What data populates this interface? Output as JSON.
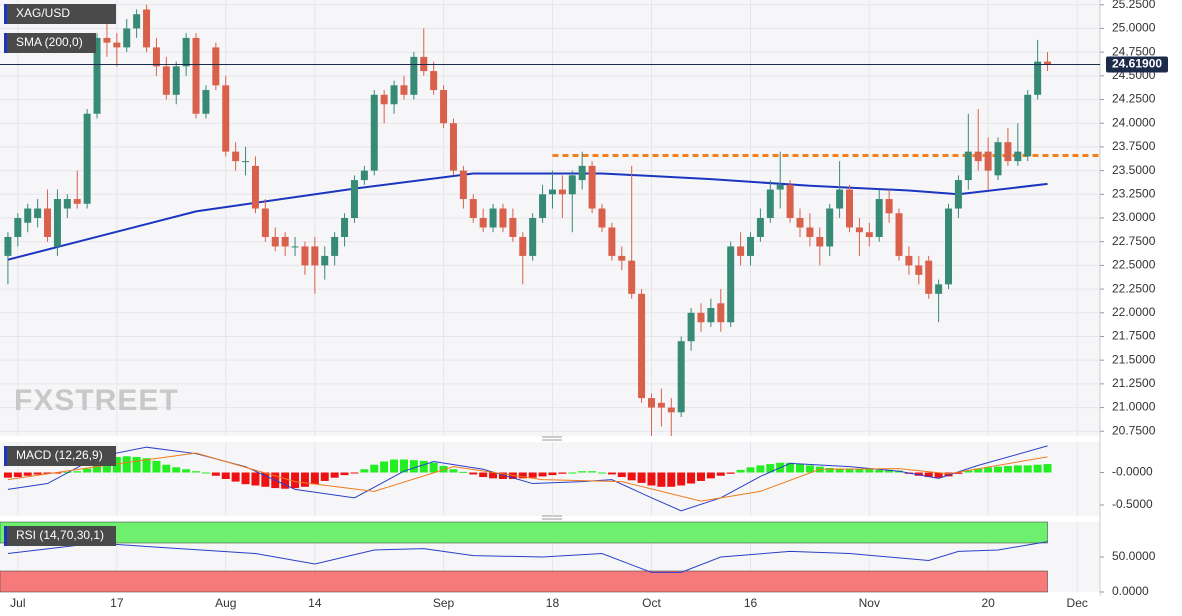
{
  "chart_data": [
    {
      "type": "candlestick",
      "title": "XAG/USD",
      "up_color": "#368a76",
      "down_color": "#d9604b",
      "grid": true,
      "xlim": [
        -0.8,
        110.3
      ],
      "xticks": [
        {
          "value": 1,
          "label": "Jul"
        },
        {
          "value": 11,
          "label": "17"
        },
        {
          "value": 22,
          "label": "Aug"
        },
        {
          "value": 31,
          "label": "14"
        },
        {
          "value": 44,
          "label": "Sep"
        },
        {
          "value": 55,
          "label": "18"
        },
        {
          "value": 65,
          "label": "Oct"
        },
        {
          "value": 75,
          "label": "16"
        },
        {
          "value": 87,
          "label": "Nov"
        },
        {
          "value": 99,
          "label": "20"
        },
        {
          "value": 108,
          "label": "Dec"
        }
      ],
      "ylim": [
        20.7,
        25.3
      ],
      "yticks": [
        {
          "value": 25.25,
          "label": "25.2500"
        },
        {
          "value": 25.0,
          "label": "25.0000"
        },
        {
          "value": 24.75,
          "label": "24.7500"
        },
        {
          "value": 24.5,
          "label": "24.5000"
        },
        {
          "value": 24.25,
          "label": "24.2500"
        },
        {
          "value": 24.0,
          "label": "24.0000"
        },
        {
          "value": 23.75,
          "label": "23.7500"
        },
        {
          "value": 23.5,
          "label": "23.5000"
        },
        {
          "value": 23.25,
          "label": "23.2500"
        },
        {
          "value": 23.0,
          "label": "23.0000"
        },
        {
          "value": 22.75,
          "label": "22.7500"
        },
        {
          "value": 22.5,
          "label": "22.5000"
        },
        {
          "value": 22.25,
          "label": "22.2500"
        },
        {
          "value": 22.0,
          "label": "22.0000"
        },
        {
          "value": 21.75,
          "label": "21.7500"
        },
        {
          "value": 21.5,
          "label": "21.5000"
        },
        {
          "value": 21.25,
          "label": "21.2500"
        },
        {
          "value": 21.0,
          "label": "21.0000"
        },
        {
          "value": 20.75,
          "label": "20.7500"
        }
      ],
      "last_price": {
        "value": 24.619,
        "label": "24.61900"
      },
      "watermark": "FXSTREET",
      "candles": [
        [
          22.6,
          22.85,
          22.3,
          22.8
        ],
        [
          22.8,
          23.05,
          22.7,
          23.0
        ],
        [
          22.95,
          23.15,
          22.85,
          23.1
        ],
        [
          23.0,
          23.2,
          22.9,
          23.1
        ],
        [
          23.1,
          23.3,
          22.75,
          22.8
        ],
        [
          22.7,
          23.3,
          22.6,
          23.2
        ],
        [
          23.1,
          23.25,
          23.0,
          23.2
        ],
        [
          23.2,
          23.5,
          23.1,
          23.15
        ],
        [
          23.15,
          24.15,
          23.1,
          24.1
        ],
        [
          24.1,
          24.95,
          24.05,
          24.9
        ],
        [
          24.9,
          25.05,
          24.7,
          24.85
        ],
        [
          24.85,
          24.95,
          24.6,
          24.8
        ],
        [
          24.8,
          25.1,
          24.75,
          25.0
        ],
        [
          25.0,
          25.2,
          24.9,
          25.15
        ],
        [
          25.2,
          25.25,
          24.75,
          24.8
        ],
        [
          24.8,
          24.9,
          24.5,
          24.6
        ],
        [
          24.6,
          24.7,
          24.25,
          24.3
        ],
        [
          24.3,
          24.65,
          24.2,
          24.6
        ],
        [
          24.6,
          24.95,
          24.5,
          24.9
        ],
        [
          24.9,
          24.95,
          24.05,
          24.1
        ],
        [
          24.1,
          24.4,
          24.05,
          24.35
        ],
        [
          24.8,
          24.85,
          24.35,
          24.4
        ],
        [
          24.4,
          24.5,
          23.65,
          23.7
        ],
        [
          23.7,
          23.8,
          23.5,
          23.6
        ],
        [
          23.6,
          23.75,
          23.45,
          23.6
        ],
        [
          23.55,
          23.65,
          23.05,
          23.1
        ],
        [
          23.1,
          23.2,
          22.75,
          22.8
        ],
        [
          22.8,
          22.9,
          22.65,
          22.7
        ],
        [
          22.8,
          22.85,
          22.6,
          22.7
        ],
        [
          22.7,
          22.8,
          22.6,
          22.7
        ],
        [
          22.7,
          22.75,
          22.4,
          22.5
        ],
        [
          22.7,
          22.8,
          22.2,
          22.5
        ],
        [
          22.5,
          22.7,
          22.35,
          22.6
        ],
        [
          22.6,
          22.85,
          22.5,
          22.8
        ],
        [
          22.8,
          23.05,
          22.7,
          23.0
        ],
        [
          23.0,
          23.45,
          22.95,
          23.4
        ],
        [
          23.4,
          23.55,
          23.35,
          23.5
        ],
        [
          23.5,
          24.35,
          23.45,
          24.3
        ],
        [
          24.3,
          24.35,
          24.0,
          24.2
        ],
        [
          24.2,
          24.45,
          24.1,
          24.4
        ],
        [
          24.4,
          24.5,
          24.25,
          24.3
        ],
        [
          24.3,
          24.75,
          24.25,
          24.7
        ],
        [
          24.7,
          25.0,
          24.5,
          24.55
        ],
        [
          24.55,
          24.65,
          24.3,
          24.35
        ],
        [
          24.35,
          24.4,
          23.95,
          24.0
        ],
        [
          24.0,
          24.05,
          23.45,
          23.5
        ],
        [
          23.5,
          23.55,
          23.1,
          23.2
        ],
        [
          23.2,
          23.25,
          22.95,
          23.0
        ],
        [
          23.0,
          23.1,
          22.85,
          22.9
        ],
        [
          22.9,
          23.15,
          22.85,
          23.1
        ],
        [
          23.1,
          23.15,
          22.85,
          22.9
        ],
        [
          23.0,
          23.1,
          22.75,
          22.8
        ],
        [
          22.8,
          22.85,
          22.3,
          22.6
        ],
        [
          22.6,
          23.05,
          22.55,
          23.0
        ],
        [
          23.0,
          23.35,
          22.95,
          23.25
        ],
        [
          23.25,
          23.5,
          23.1,
          23.3
        ],
        [
          23.3,
          23.45,
          23.0,
          23.25
        ],
        [
          23.25,
          23.5,
          22.85,
          23.45
        ],
        [
          23.4,
          23.7,
          23.3,
          23.55
        ],
        [
          23.55,
          23.6,
          23.05,
          23.1
        ],
        [
          23.1,
          23.15,
          22.85,
          22.9
        ],
        [
          22.9,
          22.95,
          22.55,
          22.6
        ],
        [
          22.6,
          22.7,
          22.45,
          22.55
        ],
        [
          22.55,
          23.55,
          22.15,
          22.2
        ],
        [
          22.2,
          22.25,
          21.05,
          21.1
        ],
        [
          21.1,
          21.15,
          20.7,
          21.0
        ],
        [
          21.05,
          21.2,
          20.8,
          21.0
        ],
        [
          21.0,
          21.1,
          20.7,
          20.95
        ],
        [
          20.95,
          21.75,
          20.9,
          21.7
        ],
        [
          21.7,
          22.05,
          21.6,
          22.0
        ],
        [
          22.0,
          22.1,
          21.8,
          21.9
        ],
        [
          21.9,
          22.15,
          21.85,
          22.05
        ],
        [
          22.1,
          22.25,
          21.8,
          21.9
        ],
        [
          21.9,
          22.75,
          21.85,
          22.7
        ],
        [
          22.7,
          22.85,
          22.5,
          22.6
        ],
        [
          22.6,
          22.85,
          22.5,
          22.8
        ],
        [
          22.8,
          23.1,
          22.75,
          23.0
        ],
        [
          23.0,
          23.4,
          22.95,
          23.3
        ],
        [
          23.3,
          23.7,
          23.1,
          23.35
        ],
        [
          23.35,
          23.4,
          22.95,
          23.0
        ],
        [
          23.0,
          23.1,
          22.8,
          22.9
        ],
        [
          22.9,
          23.05,
          22.7,
          22.8
        ],
        [
          22.8,
          22.9,
          22.5,
          22.7
        ],
        [
          22.7,
          23.15,
          22.6,
          23.1
        ],
        [
          23.1,
          23.6,
          23.0,
          23.3
        ],
        [
          23.3,
          23.35,
          22.85,
          22.9
        ],
        [
          22.9,
          23.0,
          22.6,
          22.85
        ],
        [
          22.85,
          22.95,
          22.7,
          22.8
        ],
        [
          22.8,
          23.3,
          22.75,
          23.2
        ],
        [
          23.2,
          23.3,
          22.95,
          23.05
        ],
        [
          23.05,
          23.1,
          22.55,
          22.6
        ],
        [
          22.6,
          22.7,
          22.4,
          22.5
        ],
        [
          22.5,
          22.6,
          22.3,
          22.4
        ],
        [
          22.55,
          22.6,
          22.15,
          22.2
        ],
        [
          22.2,
          22.35,
          21.9,
          22.3
        ],
        [
          22.3,
          23.15,
          22.25,
          23.1
        ],
        [
          23.1,
          23.45,
          23.0,
          23.4
        ],
        [
          23.4,
          24.1,
          23.3,
          23.7
        ],
        [
          23.7,
          24.15,
          23.5,
          23.6
        ],
        [
          23.7,
          23.85,
          23.3,
          23.5
        ],
        [
          23.45,
          23.85,
          23.4,
          23.8
        ],
        [
          23.8,
          23.95,
          23.55,
          23.6
        ],
        [
          23.6,
          24.0,
          23.55,
          23.7
        ],
        [
          23.65,
          24.35,
          23.6,
          24.3
        ],
        [
          24.3,
          24.88,
          24.25,
          24.65
        ],
        [
          24.65,
          24.75,
          24.55,
          24.62
        ]
      ],
      "series": [
        {
          "name": "SMA (200,0)",
          "color": "#1c35c0",
          "x": [
            0,
            19,
            35,
            47,
            60,
            71,
            81,
            91,
            96,
            105
          ],
          "values": [
            22.56,
            23.07,
            23.31,
            23.47,
            23.47,
            23.41,
            23.34,
            23.29,
            23.25,
            23.36
          ]
        }
      ],
      "levels": [
        {
          "value": 23.66,
          "x": 55,
          "color": "#f08020"
        }
      ]
    },
    {
      "type": "macd",
      "title": "MACD (12,26,9)",
      "ylim": [
        -0.67,
        0.47
      ],
      "yticks": [
        {
          "value": 0,
          "label": "-0.0000"
        },
        {
          "value": -0.5,
          "label": "-0.5000"
        }
      ],
      "histogram": {
        "up_color": "#22ee22",
        "down_color": "#ee1111",
        "values": [
          -0.08,
          -0.07,
          -0.05,
          -0.03,
          -0.02,
          -0.01,
          0.01,
          0.02,
          0.06,
          0.14,
          0.2,
          0.24,
          0.25,
          0.24,
          0.22,
          0.18,
          0.12,
          0.08,
          0.05,
          0.02,
          0.0,
          -0.05,
          -0.1,
          -0.14,
          -0.18,
          -0.2,
          -0.22,
          -0.24,
          -0.25,
          -0.24,
          -0.22,
          -0.18,
          -0.13,
          -0.08,
          -0.04,
          -0.01,
          0.05,
          0.12,
          0.17,
          0.2,
          0.2,
          0.19,
          0.18,
          0.15,
          0.1,
          0.05,
          0.01,
          -0.03,
          -0.07,
          -0.09,
          -0.1,
          -0.1,
          -0.09,
          -0.08,
          -0.06,
          -0.04,
          -0.02,
          0.0,
          0.02,
          0.02,
          0.0,
          -0.03,
          -0.07,
          -0.12,
          -0.16,
          -0.2,
          -0.22,
          -0.22,
          -0.2,
          -0.17,
          -0.13,
          -0.09,
          -0.05,
          -0.02,
          0.04,
          0.08,
          0.11,
          0.13,
          0.15,
          0.15,
          0.13,
          0.11,
          0.09,
          0.07,
          0.06,
          0.06,
          0.05,
          0.05,
          0.04,
          0.04,
          0.03,
          -0.02,
          -0.05,
          -0.07,
          -0.08,
          -0.06,
          -0.02,
          0.03,
          0.06,
          0.08,
          0.09,
          0.1,
          0.11,
          0.11,
          0.12,
          0.13
        ]
      },
      "series": [
        {
          "color": "#2a3fc8",
          "x": [
            0,
            4,
            9,
            14,
            19,
            24,
            29,
            35,
            40,
            43,
            48,
            53,
            58,
            61,
            65,
            68,
            72,
            76,
            79,
            85,
            90,
            94,
            98,
            105
          ],
          "values": [
            -0.26,
            -0.17,
            0.24,
            0.39,
            0.29,
            0.09,
            -0.26,
            -0.39,
            0.02,
            0.17,
            0.05,
            -0.17,
            -0.14,
            -0.11,
            -0.39,
            -0.59,
            -0.39,
            -0.06,
            0.14,
            0.09,
            0.02,
            -0.09,
            0.11,
            0.41
          ]
        },
        {
          "color": "#f07a1a",
          "x": [
            0,
            9,
            19,
            29,
            37,
            45,
            54,
            62,
            70,
            76,
            82,
            90,
            95,
            105
          ],
          "values": [
            -0.11,
            0.09,
            0.3,
            -0.14,
            -0.29,
            0.09,
            -0.11,
            -0.14,
            -0.44,
            -0.29,
            0.05,
            0.06,
            -0.02,
            0.24
          ]
        }
      ]
    },
    {
      "type": "rsi",
      "title": "RSI (14,70,30,1)",
      "ylim": [
        0,
        100
      ],
      "yticks": [
        {
          "value": 50,
          "label": "50.0000"
        },
        {
          "value": 0,
          "label": "0.0000"
        }
      ],
      "bands": [
        {
          "from": 70,
          "to": 100,
          "color": "#6ef06e"
        },
        {
          "from": 0,
          "to": 30,
          "color": "#f77a7a"
        }
      ],
      "series": [
        {
          "color": "#2a3fc8",
          "x": [
            0,
            9,
            14,
            25,
            31,
            37,
            42,
            47,
            54,
            60,
            65,
            68,
            72,
            79,
            85,
            93,
            96,
            100,
            105
          ],
          "values": [
            55,
            70,
            65,
            55,
            40,
            60,
            62,
            52,
            50,
            55,
            28,
            28,
            50,
            58,
            55,
            45,
            58,
            60,
            72
          ]
        }
      ]
    }
  ]
}
